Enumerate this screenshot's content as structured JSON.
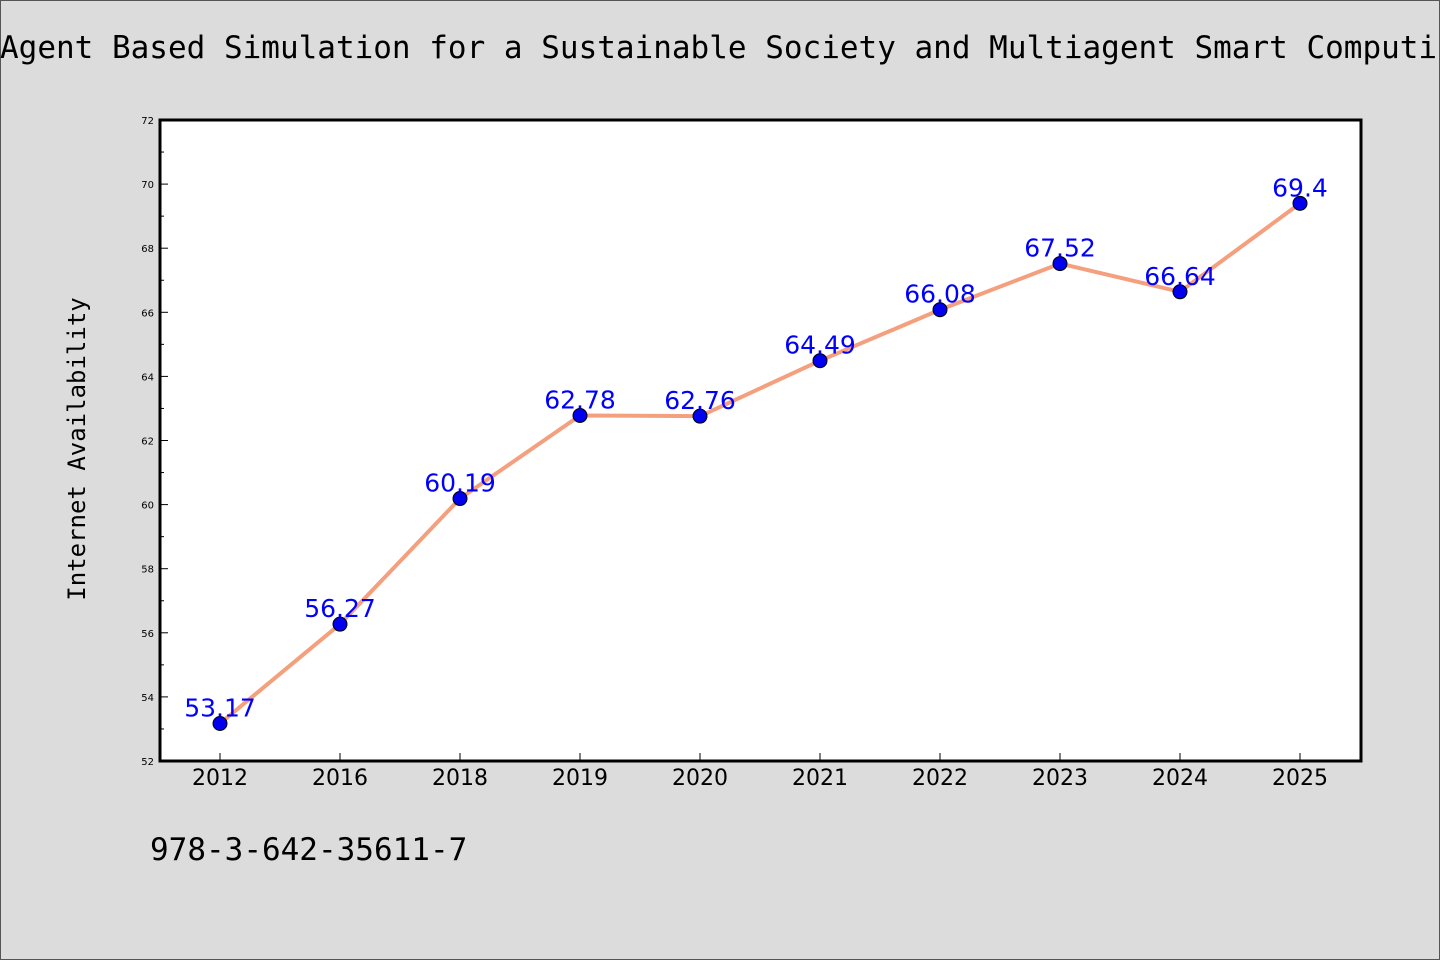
{
  "page": {
    "title": "Agent Based Simulation for a Sustainable Society and Multiagent Smart Computing",
    "footnote": "978-3-642-35611-7"
  },
  "colors": {
    "background": "#dcdcdc",
    "plot_background": "#ffffff",
    "line": "#f4a07e",
    "marker": "#0000ee",
    "data_label": "#0000ff",
    "axis": "#000000"
  },
  "chart_data": {
    "type": "line",
    "title": "Agent Based Simulation for a Sustainable Society and Multiagent Smart Computing",
    "xlabel": "",
    "ylabel": "Internet Availability",
    "categories": [
      "2012",
      "2016",
      "2018",
      "2019",
      "2020",
      "2021",
      "2022",
      "2023",
      "2024",
      "2025"
    ],
    "series": [
      {
        "values": [
          53.17,
          56.27,
          60.19,
          62.78,
          62.76,
          64.49,
          66.08,
          67.52,
          66.64,
          69.4
        ],
        "labels": [
          "53.17",
          "56.27",
          "60.19",
          "62.78",
          "62.76",
          "64.49",
          "66.08",
          "67.52",
          "66.64",
          "69.4"
        ]
      }
    ],
    "ylim": [
      52,
      72
    ],
    "yticks": [
      "52",
      "54",
      "56",
      "58",
      "60",
      "62",
      "64",
      "66",
      "68",
      "70",
      "72"
    ],
    "grid": false,
    "legend": "none"
  }
}
